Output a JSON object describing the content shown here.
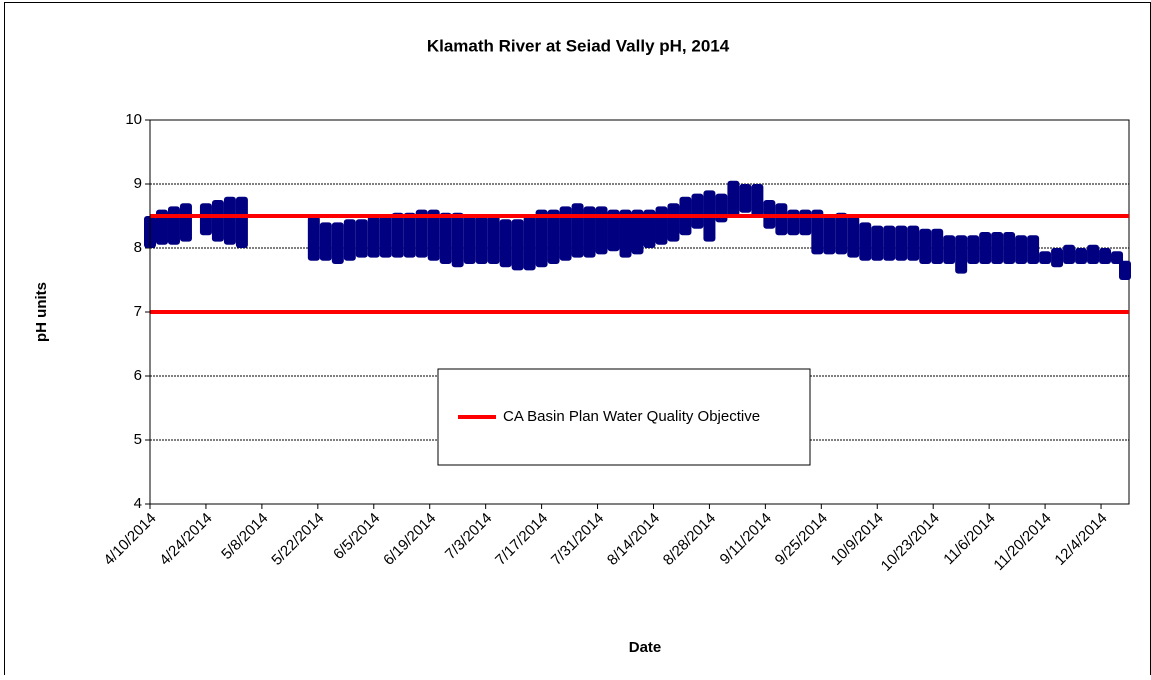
{
  "chart_data": {
    "type": "range",
    "title": "Klamath River at Seiad Vally pH, 2014",
    "x_label": "Date",
    "y_label": "pH units",
    "ylim": [
      4,
      10
    ],
    "yticks": [
      4,
      5,
      6,
      7,
      8,
      9,
      10
    ],
    "xlim": [
      "4/10/2014",
      "12/11/2014"
    ],
    "xticks": [
      "4/10/2014",
      "4/24/2014",
      "5/8/2014",
      "5/22/2014",
      "6/5/2014",
      "6/19/2014",
      "7/3/2014",
      "7/17/2014",
      "7/31/2014",
      "8/14/2014",
      "8/28/2014",
      "9/11/2014",
      "9/25/2014",
      "10/9/2014",
      "10/23/2014",
      "11/6/2014",
      "11/20/2014",
      "12/4/2014"
    ],
    "grid": true,
    "color": "#000080",
    "x": [
      "4/10/2014",
      "4/13/2014",
      "4/16/2014",
      "4/19/2014",
      "4/24/2014",
      "4/27/2014",
      "4/30/2014",
      "5/3/2014",
      "5/21/2014",
      "5/24/2014",
      "5/27/2014",
      "5/30/2014",
      "6/2/2014",
      "6/5/2014",
      "6/8/2014",
      "6/11/2014",
      "6/14/2014",
      "6/17/2014",
      "6/20/2014",
      "6/23/2014",
      "6/26/2014",
      "6/29/2014",
      "7/2/2014",
      "7/5/2014",
      "7/8/2014",
      "7/11/2014",
      "7/14/2014",
      "7/17/2014",
      "7/20/2014",
      "7/23/2014",
      "7/26/2014",
      "7/29/2014",
      "8/1/2014",
      "8/4/2014",
      "8/7/2014",
      "8/10/2014",
      "8/13/2014",
      "8/16/2014",
      "8/19/2014",
      "8/22/2014",
      "8/25/2014",
      "8/28/2014",
      "8/31/2014",
      "9/3/2014",
      "9/6/2014",
      "9/9/2014",
      "9/12/2014",
      "9/15/2014",
      "9/18/2014",
      "9/21/2014",
      "9/24/2014",
      "9/27/2014",
      "9/30/2014",
      "10/3/2014",
      "10/6/2014",
      "10/9/2014",
      "10/12/2014",
      "10/15/2014",
      "10/18/2014",
      "10/21/2014",
      "10/24/2014",
      "10/27/2014",
      "10/30/2014",
      "11/2/2014",
      "11/5/2014",
      "11/8/2014",
      "11/11/2014",
      "11/14/2014",
      "11/17/2014",
      "11/20/2014",
      "11/23/2014",
      "11/26/2014",
      "11/29/2014",
      "12/2/2014",
      "12/5/2014",
      "12/8/2014",
      "12/10/2014"
    ],
    "low": [
      8.0,
      8.05,
      8.05,
      8.1,
      8.2,
      8.1,
      8.05,
      8.0,
      7.8,
      7.8,
      7.75,
      7.8,
      7.85,
      7.85,
      7.85,
      7.85,
      7.85,
      7.85,
      7.8,
      7.75,
      7.7,
      7.75,
      7.75,
      7.75,
      7.7,
      7.65,
      7.65,
      7.7,
      7.75,
      7.8,
      7.85,
      7.85,
      7.9,
      7.95,
      7.85,
      7.9,
      8.0,
      8.05,
      8.1,
      8.2,
      8.3,
      8.1,
      8.4,
      8.5,
      8.55,
      8.5,
      8.3,
      8.2,
      8.2,
      8.2,
      7.9,
      7.9,
      7.9,
      7.85,
      7.8,
      7.8,
      7.8,
      7.8,
      7.8,
      7.75,
      7.75,
      7.75,
      7.6,
      7.75,
      7.75,
      7.75,
      7.75,
      7.75,
      7.75,
      7.75,
      7.7,
      7.75,
      7.75,
      7.75,
      7.75,
      7.75,
      7.5
    ],
    "high": [
      8.5,
      8.6,
      8.65,
      8.7,
      8.7,
      8.75,
      8.8,
      8.8,
      8.5,
      8.4,
      8.4,
      8.45,
      8.45,
      8.5,
      8.5,
      8.55,
      8.55,
      8.6,
      8.6,
      8.55,
      8.55,
      8.5,
      8.5,
      8.5,
      8.45,
      8.45,
      8.5,
      8.6,
      8.6,
      8.65,
      8.7,
      8.65,
      8.65,
      8.6,
      8.6,
      8.6,
      8.6,
      8.65,
      8.7,
      8.8,
      8.85,
      8.9,
      8.85,
      9.05,
      9.0,
      9.0,
      8.75,
      8.7,
      8.6,
      8.6,
      8.6,
      8.5,
      8.55,
      8.5,
      8.4,
      8.35,
      8.35,
      8.35,
      8.35,
      8.3,
      8.3,
      8.2,
      8.2,
      8.2,
      8.25,
      8.25,
      8.25,
      8.2,
      8.2,
      7.95,
      8.0,
      8.05,
      8.0,
      8.05,
      8.0,
      7.95,
      7.8
    ],
    "objective": {
      "name": "CA Basin Plan Water Quality Objective",
      "color": "#ff0000",
      "values": [
        8.5,
        7
      ]
    }
  }
}
